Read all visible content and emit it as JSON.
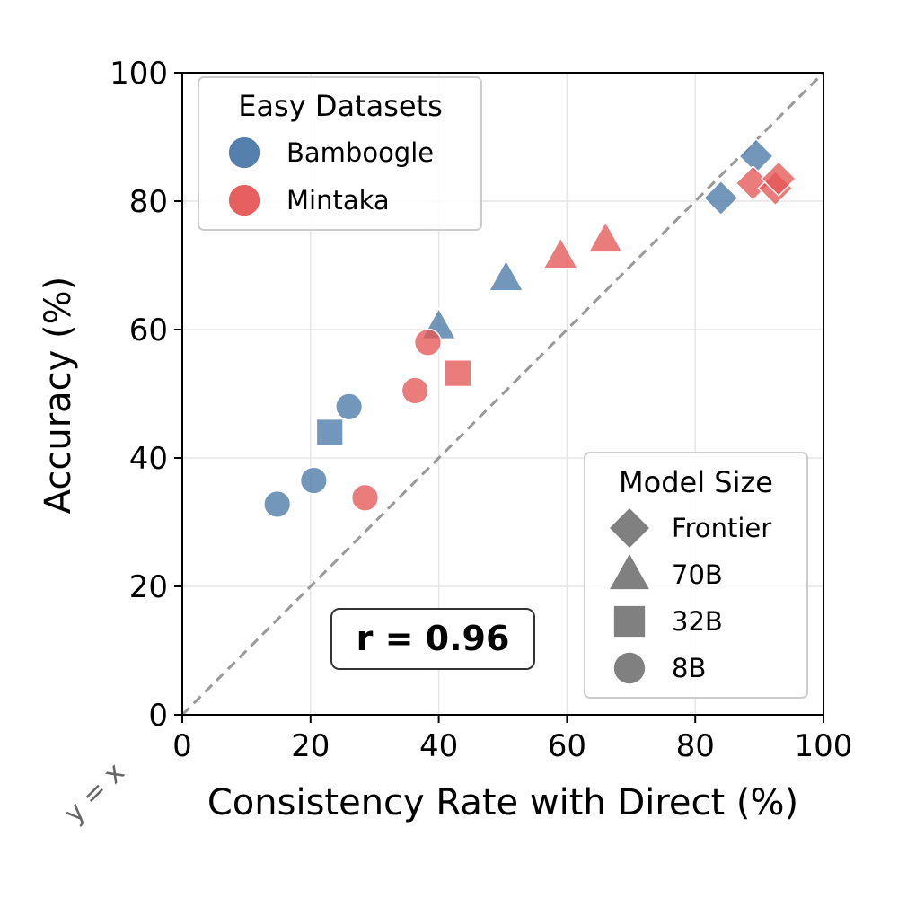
{
  "chart_data": {
    "type": "scatter",
    "xlabel": "Consistency Rate with Direct (%)",
    "ylabel": "Accuracy (%)",
    "xlim": [
      0,
      100
    ],
    "ylim": [
      0,
      100
    ],
    "xticks": [
      "0",
      "20",
      "40",
      "60",
      "80",
      "100"
    ],
    "yticks": [
      "0",
      "20",
      "40",
      "60",
      "80",
      "100"
    ],
    "grid": true,
    "reference_line": {
      "label": "y = x",
      "style": "dashed"
    },
    "annotation": "r = 0.96",
    "series": [
      {
        "name": "Bamboogle",
        "color": "#4c78a8",
        "points": [
          {
            "x": 89.5,
            "y": 87.0,
            "size": "Frontier"
          },
          {
            "x": 84.0,
            "y": 80.5,
            "size": "Frontier"
          },
          {
            "x": 50.5,
            "y": 68.0,
            "size": "70B"
          },
          {
            "x": 40.0,
            "y": 60.5,
            "size": "70B"
          },
          {
            "x": 23.0,
            "y": 44.0,
            "size": "32B"
          },
          {
            "x": 26.0,
            "y": 48.0,
            "size": "8B"
          },
          {
            "x": 20.5,
            "y": 36.5,
            "size": "8B"
          },
          {
            "x": 14.8,
            "y": 32.8,
            "size": "8B"
          }
        ]
      },
      {
        "name": "Mintaka",
        "color": "#e45756",
        "points": [
          {
            "x": 89.0,
            "y": 82.8,
            "size": "Frontier"
          },
          {
            "x": 92.5,
            "y": 82.0,
            "size": "Frontier"
          },
          {
            "x": 93.0,
            "y": 83.5,
            "size": "Frontier"
          },
          {
            "x": 66.0,
            "y": 74.0,
            "size": "70B"
          },
          {
            "x": 59.0,
            "y": 71.5,
            "size": "70B"
          },
          {
            "x": 43.0,
            "y": 53.2,
            "size": "32B"
          },
          {
            "x": 38.3,
            "y": 58.0,
            "size": "8B"
          },
          {
            "x": 36.3,
            "y": 50.5,
            "size": "8B"
          },
          {
            "x": 28.5,
            "y": 33.8,
            "size": "8B"
          }
        ]
      }
    ],
    "legends": [
      {
        "title": "Easy Datasets",
        "position": "top-left",
        "items": [
          {
            "label": "Bamboogle",
            "marker": "circle",
            "color": "#4c78a8"
          },
          {
            "label": "Mintaka",
            "marker": "circle",
            "color": "#e45756"
          }
        ]
      },
      {
        "title": "Model Size",
        "position": "bottom-right",
        "items": [
          {
            "label": "Frontier",
            "marker": "diamond",
            "color": "#808080"
          },
          {
            "label": "70B",
            "marker": "triangle",
            "color": "#808080"
          },
          {
            "label": "32B",
            "marker": "square",
            "color": "#808080"
          },
          {
            "label": "8B",
            "marker": "circle",
            "color": "#808080"
          }
        ]
      }
    ]
  }
}
